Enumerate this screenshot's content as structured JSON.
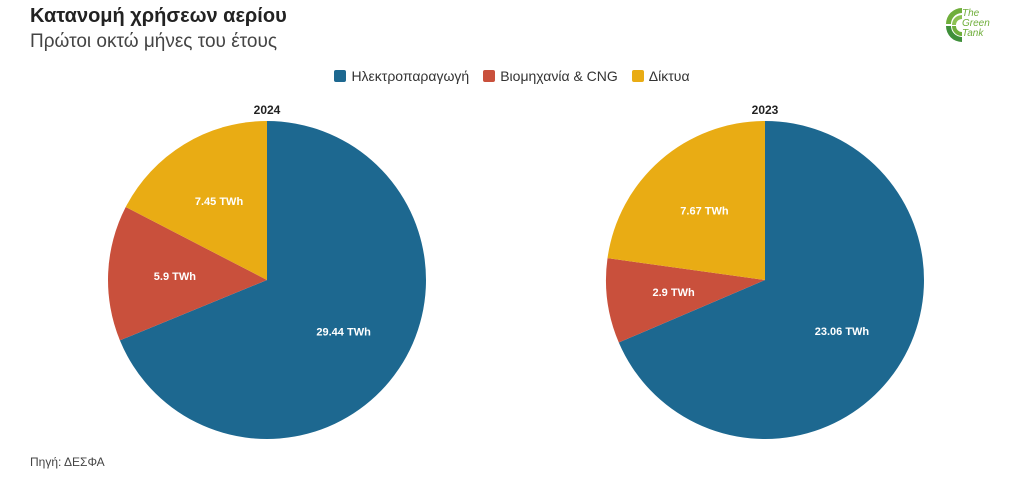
{
  "header": {
    "title": "Κατανομή χρήσεων αερίου",
    "subtitle": "Πρώτοι οκτώ μήνες του έτους"
  },
  "logo": {
    "line1": "The",
    "line2": "Green",
    "line3": "Tank"
  },
  "legend": [
    {
      "label": "Ηλεκτροπαραγωγή",
      "color": "#1d6890"
    },
    {
      "label": "Βιομηχανία & CNG",
      "color": "#c9503c"
    },
    {
      "label": "Δίκτυα",
      "color": "#e9ac14"
    }
  ],
  "chart_data": [
    {
      "type": "pie",
      "title": "2024",
      "categories": [
        "Ηλεκτροπαραγωγή",
        "Βιομηχανία & CNG",
        "Δίκτυα"
      ],
      "values": [
        29.44,
        5.9,
        7.45
      ],
      "labels": [
        "29.44 TWh",
        "5.9 TWh",
        "7.45 TWh"
      ],
      "colors": [
        "#1d6890",
        "#c9503c",
        "#e9ac14"
      ]
    },
    {
      "type": "pie",
      "title": "2023",
      "categories": [
        "Ηλεκτροπαραγωγή",
        "Βιομηχανία & CNG",
        "Δίκτυα"
      ],
      "values": [
        23.06,
        2.9,
        7.67
      ],
      "labels": [
        "23.06 TWh",
        "2.9 TWh",
        "7.67 TWh"
      ],
      "colors": [
        "#1d6890",
        "#c9503c",
        "#e9ac14"
      ]
    }
  ],
  "footer": {
    "source": "Πηγή: ΔΕΣΦΑ"
  }
}
